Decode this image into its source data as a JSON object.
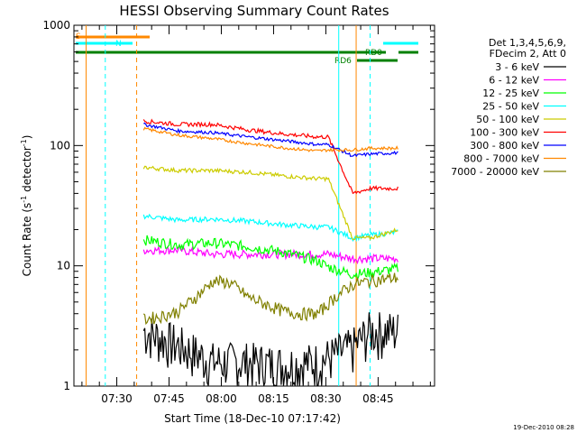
{
  "chart_data": {
    "type": "line",
    "title": "HESSI Observing Summary Count Rates",
    "xlabel": "Start Time (18-Dec-10 07:17:42)",
    "ylabel": "Count Rate (s",
    "ylabel_sup1": "-1",
    "ylabel_mid": " detector",
    "ylabel_sup2": "-1",
    "ylabel_end": ")",
    "yscale": "log",
    "ylim": [
      1,
      1000
    ],
    "xlim_minutes": [
      0,
      103.5
    ],
    "x_tick_labels": [
      "07:30",
      "07:45",
      "08:00",
      "08:15",
      "08:30",
      "08:45"
    ],
    "x_ticks_minutes": [
      12.3,
      27.3,
      42.3,
      57.3,
      72.3,
      87.3
    ],
    "y_tick_labels": [
      "1",
      "10",
      "100",
      "1000"
    ],
    "y_ticks": [
      1,
      10,
      100,
      1000
    ],
    "legend_title_1": "Det 1,3,4,5,6,9,",
    "legend_title_2": "FDecim 2, Att 0",
    "legend_position": "right",
    "series": [
      {
        "name": "3 - 6 keV",
        "color": "#000000",
        "x": [
          20,
          30,
          40,
          50,
          60,
          70,
          80,
          85,
          93
        ],
        "y": [
          2.9,
          2.2,
          1.6,
          1.6,
          1.5,
          1.6,
          2.1,
          2.9,
          2.9
        ]
      },
      {
        "name": "6 - 12 keV",
        "color": "#ff00ff",
        "x": [
          20,
          30,
          40,
          50,
          60,
          70,
          73,
          80,
          85,
          93
        ],
        "y": [
          13.5,
          13.5,
          12.5,
          12.5,
          12.5,
          12.5,
          12.5,
          11.5,
          11.5,
          11.5
        ]
      },
      {
        "name": "12 - 25 keV",
        "color": "#00ff00",
        "x": [
          20,
          30,
          40,
          50,
          60,
          70,
          73,
          80,
          85,
          93
        ],
        "y": [
          16.5,
          15,
          15.5,
          14.5,
          13,
          11,
          9.8,
          8.5,
          8.8,
          9.5
        ]
      },
      {
        "name": "25 - 50 keV",
        "color": "#00ffff",
        "x": [
          20,
          30,
          40,
          50,
          60,
          70,
          73,
          80,
          85,
          93
        ],
        "y": [
          26,
          24,
          24.5,
          23.5,
          22,
          21,
          21,
          17,
          18,
          19
        ]
      },
      {
        "name": "50 - 100 keV",
        "color": "#cccc00",
        "x": [
          20,
          30,
          40,
          50,
          60,
          70,
          73,
          80,
          85,
          93
        ],
        "y": [
          66,
          62,
          62,
          60,
          56,
          53,
          53,
          17,
          17,
          20
        ]
      },
      {
        "name": "100 - 300 keV",
        "color": "#ff0000",
        "x": [
          20,
          30,
          40,
          50,
          60,
          70,
          73,
          80,
          85,
          93
        ],
        "y": [
          160,
          150,
          150,
          135,
          125,
          118,
          118,
          40,
          44,
          44
        ]
      },
      {
        "name": "300 - 800 keV",
        "color": "#0000ff",
        "x": [
          20,
          30,
          40,
          50,
          60,
          70,
          73,
          80,
          85,
          93
        ],
        "y": [
          150,
          132,
          128,
          118,
          110,
          102,
          102,
          82,
          85,
          87
        ]
      },
      {
        "name": "800 - 7000 keV",
        "color": "#ff8800",
        "x": [
          20,
          30,
          40,
          50,
          60,
          70,
          73,
          80,
          85,
          93
        ],
        "y": [
          138,
          122,
          114,
          104,
          96,
          90,
          92,
          92,
          95,
          95
        ]
      },
      {
        "name": "7000 - 20000 keV",
        "color": "#808000",
        "x": [
          20,
          25,
          30,
          35,
          40,
          45,
          50,
          55,
          60,
          65,
          70,
          75,
          80,
          85,
          93
        ],
        "y": [
          3.6,
          3.8,
          4.2,
          5.5,
          7.5,
          7.2,
          5.5,
          4.8,
          4.2,
          4,
          4,
          5.5,
          7,
          7.5,
          8
        ]
      }
    ],
    "vertical_lines": [
      {
        "x": 3.5,
        "color": "#ff8800",
        "style": "solid"
      },
      {
        "x": 9,
        "color": "#00ffff",
        "style": "dashed"
      },
      {
        "x": 18,
        "color": "#ff8800",
        "style": "dashed"
      },
      {
        "x": 76,
        "color": "#00ffff",
        "style": "solid"
      },
      {
        "x": 81,
        "color": "#ff8800",
        "style": "solid"
      },
      {
        "x": 85,
        "color": "#00ffff",
        "style": "dashed"
      }
    ],
    "annotations": [
      {
        "text": "S",
        "color": "#ff8800"
      },
      {
        "text": "N",
        "color": "#00ffff"
      },
      {
        "text": "RD0",
        "color": "#008000"
      },
      {
        "text": "RD6",
        "color": "#008000"
      }
    ],
    "stamp": "19-Dec-2010 08:28"
  }
}
